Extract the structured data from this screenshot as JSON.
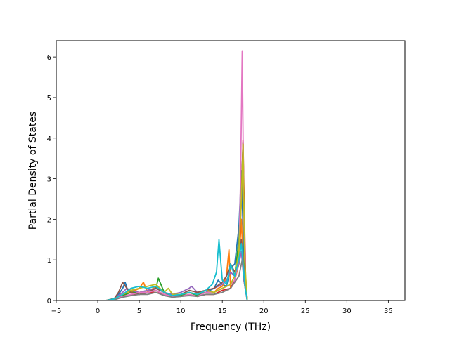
{
  "chart_data": {
    "type": "line",
    "xlabel": "Frequency (THz)",
    "ylabel": "Partial Density of States",
    "xlim": [
      -5,
      37
    ],
    "ylim": [
      0,
      6.4
    ],
    "x_ticks": [
      -5,
      0,
      5,
      10,
      15,
      20,
      25,
      30,
      35
    ],
    "y_ticks": [
      0,
      1,
      2,
      3,
      4,
      5,
      6
    ],
    "grid": false,
    "legend": "none",
    "colors": [
      "#1f77b4",
      "#ff7f0e",
      "#2ca02c",
      "#d62728",
      "#9467bd",
      "#8c564b",
      "#e377c2",
      "#7f7f7f",
      "#bcbd22",
      "#17becf"
    ],
    "series": [
      {
        "x": [
          -3.3,
          0,
          1,
          2,
          2.5,
          3,
          3.3,
          3.6,
          4,
          5,
          6,
          7,
          8,
          9,
          10,
          11,
          12,
          13,
          14,
          14.5,
          15,
          15.5,
          16,
          16.5,
          17,
          17.3,
          17.6,
          18,
          20,
          35
        ],
        "values": [
          0,
          0,
          0,
          0.05,
          0.15,
          0.3,
          0.45,
          0.25,
          0.2,
          0.15,
          0.2,
          0.25,
          0.15,
          0.1,
          0.15,
          0.2,
          0.15,
          0.2,
          0.3,
          0.5,
          0.4,
          0.35,
          0.8,
          0.9,
          1.8,
          3.2,
          1.0,
          0,
          0,
          0
        ]
      },
      {
        "x": [
          -3.3,
          0,
          1,
          2,
          3,
          4,
          5,
          5.5,
          6,
          7,
          8,
          9,
          10,
          11,
          12,
          13,
          14,
          14.5,
          15,
          15.5,
          15.8,
          16,
          16.5,
          17,
          17.3,
          17.6,
          18,
          20,
          35
        ],
        "values": [
          0,
          0,
          0,
          0.05,
          0.15,
          0.2,
          0.3,
          0.45,
          0.2,
          0.35,
          0.2,
          0.1,
          0.15,
          0.2,
          0.15,
          0.25,
          0.2,
          0.3,
          0.35,
          0.6,
          1.25,
          0.3,
          0.5,
          0.9,
          2.0,
          0.5,
          0,
          0,
          0
        ]
      },
      {
        "x": [
          -3.3,
          0,
          1,
          2,
          3,
          4,
          5,
          6,
          7,
          7.3,
          8,
          9,
          10,
          11,
          12,
          13,
          14,
          15,
          16,
          16.5,
          17,
          17.3,
          17.5,
          17.7,
          18,
          20,
          35
        ],
        "values": [
          0,
          0,
          0,
          0.04,
          0.12,
          0.2,
          0.2,
          0.25,
          0.3,
          0.55,
          0.2,
          0.1,
          0.12,
          0.2,
          0.12,
          0.2,
          0.2,
          0.3,
          0.4,
          0.6,
          1.5,
          2.7,
          3.9,
          0.8,
          0,
          0,
          0
        ]
      },
      {
        "x": [
          -3.3,
          0,
          1,
          2,
          3,
          4,
          5,
          6,
          7,
          8,
          9,
          10,
          11,
          12,
          13,
          14,
          15,
          16,
          16.5,
          17,
          17.3,
          17.5,
          17.8,
          18,
          20,
          35
        ],
        "values": [
          0,
          0,
          0,
          0.03,
          0.1,
          0.15,
          0.15,
          0.2,
          0.2,
          0.15,
          0.1,
          0.1,
          0.15,
          0.1,
          0.15,
          0.15,
          0.25,
          0.3,
          0.5,
          1.0,
          2.5,
          3.95,
          0.6,
          0,
          0,
          0
        ]
      },
      {
        "x": [
          -3.3,
          0,
          1,
          2,
          3,
          3.5,
          4,
          5,
          6,
          7,
          8,
          9,
          10,
          11,
          11.3,
          12,
          13,
          14,
          15,
          15.5,
          16,
          16.5,
          17,
          17.3,
          17.6,
          18,
          20,
          35
        ],
        "values": [
          0,
          0,
          0,
          0.05,
          0.2,
          0.3,
          0.25,
          0.2,
          0.25,
          0.3,
          0.2,
          0.15,
          0.2,
          0.3,
          0.35,
          0.2,
          0.25,
          0.3,
          0.4,
          0.5,
          0.7,
          0.6,
          0.9,
          1.2,
          0.5,
          0,
          0,
          0
        ]
      },
      {
        "x": [
          -3.3,
          0,
          1,
          2,
          2.5,
          3,
          3.5,
          4,
          5,
          6,
          7,
          8,
          9,
          10,
          11,
          12,
          13,
          14,
          15,
          15.5,
          16,
          16.5,
          17,
          17.3,
          17.6,
          18,
          20,
          35
        ],
        "values": [
          0,
          0,
          0,
          0.05,
          0.2,
          0.45,
          0.3,
          0.2,
          0.15,
          0.2,
          0.3,
          0.2,
          0.1,
          0.15,
          0.25,
          0.2,
          0.25,
          0.3,
          0.45,
          0.6,
          0.9,
          0.7,
          1.0,
          1.5,
          0.6,
          0,
          0,
          0
        ]
      },
      {
        "x": [
          -3.3,
          0,
          1,
          2,
          3,
          4,
          5,
          6,
          7,
          8,
          9,
          10,
          11,
          12,
          13,
          14,
          15,
          16,
          16.5,
          17,
          17.2,
          17.4,
          17.6,
          17.8,
          18,
          20,
          35
        ],
        "values": [
          0,
          0,
          0,
          0.03,
          0.1,
          0.15,
          0.2,
          0.2,
          0.25,
          0.15,
          0.1,
          0.1,
          0.15,
          0.1,
          0.2,
          0.2,
          0.3,
          0.4,
          0.5,
          1.0,
          3.0,
          6.15,
          2.0,
          0.3,
          0,
          0,
          0
        ]
      },
      {
        "x": [
          -3.3,
          0,
          1,
          2,
          3,
          4,
          5,
          6,
          7,
          8,
          9,
          10,
          11,
          12,
          13,
          14,
          15,
          16,
          17,
          17.4,
          17.8,
          18,
          20,
          35
        ],
        "values": [
          0,
          0,
          0,
          0.02,
          0.08,
          0.12,
          0.15,
          0.15,
          0.2,
          0.12,
          0.08,
          0.1,
          0.12,
          0.1,
          0.15,
          0.15,
          0.2,
          0.3,
          0.6,
          1.0,
          0.3,
          0,
          0,
          0
        ]
      },
      {
        "x": [
          -3.3,
          0,
          1,
          2,
          3,
          4,
          5,
          6,
          7,
          8,
          8.5,
          9,
          10,
          11,
          12,
          13,
          14,
          15,
          16,
          16.5,
          17,
          17.3,
          17.5,
          17.7,
          18,
          20,
          35
        ],
        "values": [
          0,
          0,
          0,
          0.04,
          0.15,
          0.25,
          0.3,
          0.35,
          0.4,
          0.2,
          0.3,
          0.15,
          0.15,
          0.2,
          0.15,
          0.25,
          0.2,
          0.3,
          0.4,
          0.6,
          1.2,
          2.5,
          3.85,
          1.0,
          0,
          0,
          0
        ]
      },
      {
        "x": [
          -3.3,
          0,
          1,
          2,
          3,
          4,
          5,
          6,
          7,
          8,
          9,
          10,
          11,
          12,
          13,
          13.8,
          14.3,
          14.6,
          15,
          15.5,
          16,
          16.5,
          17,
          17.3,
          17.7,
          18,
          20,
          35
        ],
        "values": [
          0,
          0,
          0,
          0.04,
          0.15,
          0.3,
          0.35,
          0.3,
          0.35,
          0.2,
          0.12,
          0.15,
          0.2,
          0.15,
          0.25,
          0.4,
          0.7,
          1.5,
          0.5,
          0.4,
          0.9,
          0.6,
          1.0,
          1.4,
          0.4,
          0,
          0,
          0
        ]
      }
    ]
  }
}
